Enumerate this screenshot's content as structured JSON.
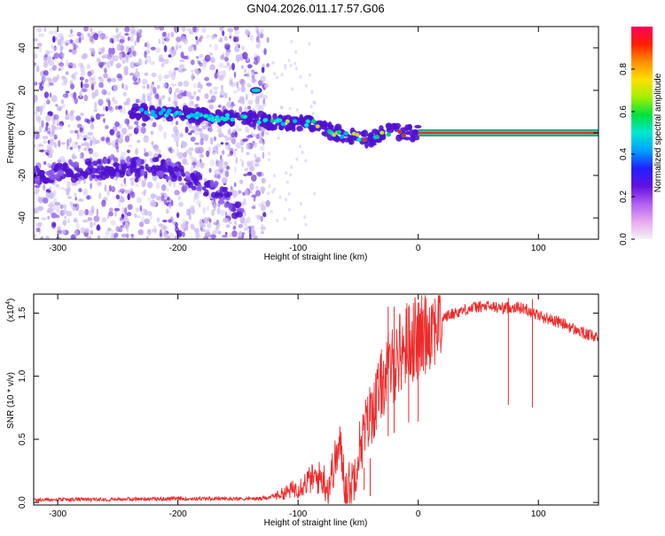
{
  "title": "GN04.2026.011.17.57.G06",
  "colors": {
    "axis": "#000000",
    "snr_line": "#ee2a2a",
    "tone_line": "#e83030",
    "tone_band": "#18a070",
    "spectro_light": "#cdbaf2",
    "spectro_mid": "#8a55e8",
    "spectro_dark": "#5010d0",
    "background": "#ffffff"
  },
  "colormap": [
    "#f4f4f4",
    "#e7a8f0",
    "#b060f0",
    "#6010e0",
    "#2020ff",
    "#00a0ff",
    "#00e8d0",
    "#00e040",
    "#a0f000",
    "#ffe000",
    "#ff9000",
    "#ff2000",
    "#ff0060"
  ],
  "chart_data": [
    {
      "type": "heatmap",
      "xlabel": "Height of straight line (km)",
      "ylabel": "Frequency (Hz)",
      "xlim": [
        -320,
        150
      ],
      "ylim": [
        -50,
        50
      ],
      "x_ticks": [
        -300,
        -200,
        -100,
        0,
        100
      ],
      "y_ticks": [
        -40,
        -20,
        0,
        20,
        40
      ],
      "colorbar": {
        "label": "Normalized spectral amplitude",
        "range": [
          0,
          1
        ],
        "ticks": [
          0.0,
          0.2,
          0.4,
          0.6,
          0.8
        ]
      },
      "features": {
        "noise_region_x": [
          -320,
          -125
        ],
        "upper_track": [
          [
            -240,
            10
          ],
          [
            -200,
            9
          ],
          [
            -160,
            7
          ],
          [
            -130,
            6
          ],
          [
            -110,
            4
          ],
          [
            -90,
            5
          ],
          [
            -80,
            3
          ],
          [
            -70,
            0
          ],
          [
            -60,
            -1
          ],
          [
            -50,
            -2
          ],
          [
            -40,
            -3
          ],
          [
            -30,
            0
          ],
          [
            -20,
            1
          ],
          [
            -10,
            0
          ],
          [
            0,
            0
          ]
        ],
        "lower_track": [
          [
            -320,
            -20
          ],
          [
            -280,
            -18
          ],
          [
            -250,
            -16
          ],
          [
            -220,
            -16
          ],
          [
            -200,
            -18
          ],
          [
            -180,
            -24
          ],
          [
            -160,
            -30
          ],
          [
            -145,
            -40
          ]
        ],
        "stable_tone": {
          "x_start": 0,
          "x_end": 150,
          "frequency": 0
        }
      }
    },
    {
      "type": "line",
      "xlabel": "Height of straight line (km)",
      "ylabel": "SNR (10 * v/v)",
      "y_multiplier": "(x10",
      "y_multiplier_exp": "4",
      "y_multiplier_close": ")",
      "xlim": [
        -320,
        150
      ],
      "ylim": [
        -0.02,
        1.65
      ],
      "x_ticks": [
        -300,
        -200,
        -100,
        0,
        100
      ],
      "y_ticks": [
        0.0,
        0.5,
        1.0,
        1.5
      ],
      "envelope": [
        [
          -320,
          0.02
        ],
        [
          -200,
          0.03
        ],
        [
          -130,
          0.03
        ],
        [
          -120,
          0.05
        ],
        [
          -110,
          0.08
        ],
        [
          -100,
          0.12
        ],
        [
          -90,
          0.18
        ],
        [
          -80,
          0.2
        ],
        [
          -75,
          0.12
        ],
        [
          -70,
          0.3
        ],
        [
          -65,
          0.45
        ],
        [
          -60,
          0.1
        ],
        [
          -55,
          0.15
        ],
        [
          -50,
          0.4
        ],
        [
          -45,
          0.55
        ],
        [
          -40,
          0.7
        ],
        [
          -35,
          0.8
        ],
        [
          -30,
          0.95
        ],
        [
          -25,
          1.05
        ],
        [
          -20,
          1.1
        ],
        [
          -15,
          1.2
        ],
        [
          -10,
          1.25
        ],
        [
          -5,
          1.3
        ],
        [
          0,
          1.28
        ],
        [
          5,
          1.35
        ],
        [
          10,
          1.4
        ],
        [
          20,
          1.46
        ],
        [
          30,
          1.5
        ],
        [
          40,
          1.53
        ],
        [
          50,
          1.55
        ],
        [
          60,
          1.55
        ],
        [
          70,
          1.54
        ],
        [
          80,
          1.55
        ],
        [
          90,
          1.53
        ],
        [
          100,
          1.48
        ],
        [
          110,
          1.45
        ],
        [
          120,
          1.42
        ],
        [
          130,
          1.37
        ],
        [
          140,
          1.33
        ],
        [
          150,
          1.3
        ]
      ],
      "spikes": [
        [
          -25,
          1.55
        ],
        [
          -20,
          1.55
        ],
        [
          -8,
          1.55
        ],
        [
          0,
          1.2
        ],
        [
          -45,
          0.1
        ],
        [
          -40,
          0.05
        ],
        [
          75,
          1.62
        ],
        [
          95,
          1.61
        ]
      ]
    }
  ]
}
